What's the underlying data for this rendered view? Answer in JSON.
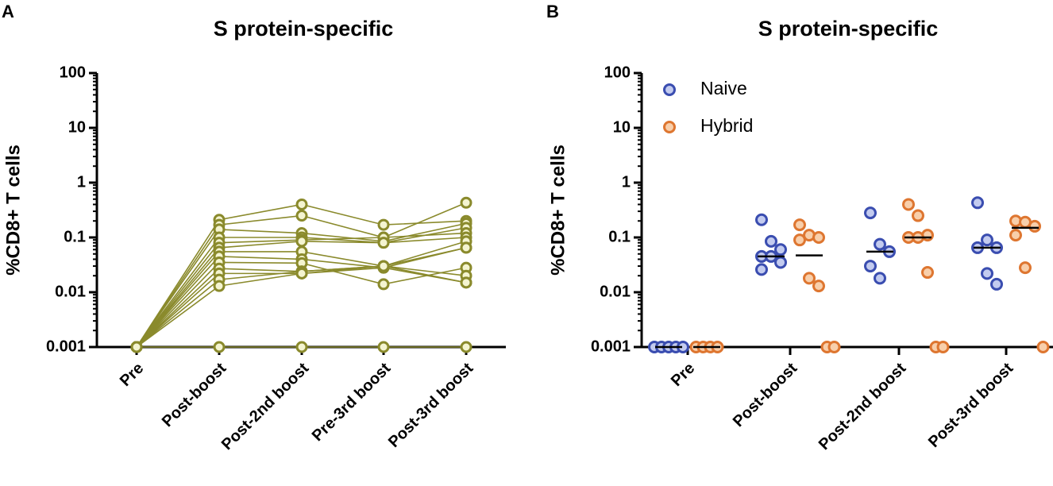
{
  "chart_data": [
    {
      "type": "line",
      "panel_label": "A",
      "title": "S protein-specific",
      "ylabel": "%CD8+ T cells",
      "categories": [
        "Pre",
        "Post-boost",
        "Post-2nd boost",
        "Pre-3rd boost",
        "Post-3rd boost"
      ],
      "color": "#8a8a2c",
      "log_y": true,
      "ylim": [
        0.001,
        100
      ],
      "yticks": [
        0.001,
        0.01,
        0.1,
        1,
        10,
        100
      ],
      "series": [
        {
          "values": [
            0.001,
            0.21,
            0.4,
            0.17,
            0.2
          ]
        },
        {
          "values": [
            0.001,
            0.17,
            0.25,
            0.1,
            0.43
          ]
        },
        {
          "values": [
            0.001,
            0.14,
            0.12,
            0.085,
            0.18
          ]
        },
        {
          "values": [
            0.001,
            0.1,
            0.1,
            0.08,
            0.15
          ]
        },
        {
          "values": [
            0.001,
            0.08,
            0.09,
            0.1,
            0.12
          ]
        },
        {
          "values": [
            0.001,
            0.065,
            0.085,
            0.08,
            0.1
          ]
        },
        {
          "values": [
            0.001,
            0.055,
            0.055,
            0.03,
            0.085
          ]
        },
        {
          "values": [
            0.001,
            0.045,
            0.04,
            0.028,
            0.065
          ]
        },
        {
          "values": [
            0.001,
            0.035,
            0.034,
            0.014,
            0.028
          ]
        },
        {
          "values": [
            0.001,
            0.027,
            0.024,
            0.03,
            0.02
          ]
        },
        {
          "values": [
            0.001,
            0.022,
            0.022,
            0.028,
            0.015
          ]
        },
        {
          "values": [
            0.001,
            0.017,
            0.024,
            0.03,
            0.065
          ]
        },
        {
          "values": [
            0.001,
            0.013,
            0.022,
            0.03,
            0.015
          ]
        },
        {
          "values": [
            0.001,
            0.001,
            0.001,
            0.001,
            0.001
          ]
        }
      ]
    },
    {
      "type": "dot",
      "panel_label": "B",
      "title": "S protein-specific",
      "ylabel": "%CD8+ T cells",
      "categories": [
        "Pre",
        "Post-boost",
        "Post-2nd boost",
        "Post-3rd boost"
      ],
      "log_y": true,
      "ylim": [
        0.001,
        100
      ],
      "yticks": [
        0.001,
        0.01,
        0.1,
        1,
        10,
        100
      ],
      "legend": "upper left",
      "series": [
        {
          "name": "Naive",
          "color": "#3a4db0",
          "fill": "#c3cbef",
          "values": [
            [
              0.001,
              0.001,
              0.001,
              0.001,
              0.001
            ],
            [
              0.21,
              0.085,
              0.06,
              0.045,
              0.045,
              0.035,
              0.026
            ],
            [
              0.28,
              0.075,
              0.055,
              0.03,
              0.018
            ],
            [
              0.43,
              0.09,
              0.065,
              0.065,
              0.022,
              0.014
            ]
          ],
          "medians": [
            0.001,
            0.045,
            0.055,
            0.065
          ]
        },
        {
          "name": "Hybrid",
          "color": "#de7630",
          "fill": "#f8cfab",
          "values": [
            [
              0.001,
              0.001,
              0.001,
              0.001
            ],
            [
              0.17,
              0.11,
              0.1,
              0.09,
              0.018,
              0.013,
              0.001,
              0.001
            ],
            [
              0.4,
              0.25,
              0.11,
              0.1,
              0.1,
              0.023,
              0.001,
              0.001
            ],
            [
              0.2,
              0.19,
              0.16,
              0.11,
              0.028,
              0.001
            ]
          ],
          "medians": [
            0.001,
            0.047,
            0.1,
            0.15
          ]
        }
      ]
    }
  ]
}
